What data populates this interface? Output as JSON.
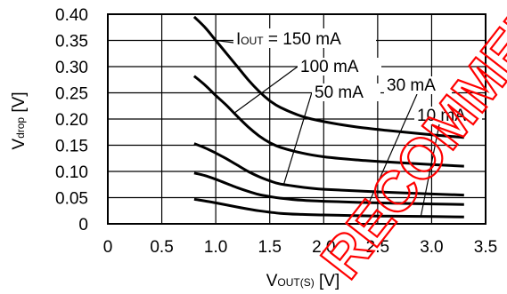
{
  "chart_data": {
    "type": "line",
    "xlabel": {
      "main": "V",
      "sub": "OUT(S)",
      "unit": " [V]"
    },
    "ylabel": {
      "main": "V",
      "sub": "drop",
      "unit": " [V]"
    },
    "xlim": [
      0,
      3.5
    ],
    "ylim": [
      0,
      0.4
    ],
    "x_ticks": [
      "0",
      "0.5",
      "1.0",
      "1.5",
      "2.0",
      "2.5",
      "3.0",
      "3.5"
    ],
    "y_ticks": [
      "0",
      "0.05",
      "0.10",
      "0.15",
      "0.20",
      "0.25",
      "0.30",
      "0.35",
      "0.40"
    ],
    "grid": true,
    "series": [
      {
        "name": "IOUT = 150 mA",
        "x": [
          0.8,
          0.9,
          1.0,
          1.1,
          1.2,
          1.3,
          1.4,
          1.5,
          1.6,
          1.8,
          2.0,
          2.3,
          2.6,
          3.0,
          3.3
        ],
        "y": [
          0.395,
          0.375,
          0.35,
          0.325,
          0.3,
          0.275,
          0.253,
          0.235,
          0.222,
          0.205,
          0.195,
          0.185,
          0.178,
          0.17,
          0.165
        ]
      },
      {
        "name": "100 mA",
        "x": [
          0.8,
          0.9,
          1.0,
          1.1,
          1.2,
          1.3,
          1.4,
          1.5,
          1.6,
          1.8,
          2.0,
          2.3,
          2.6,
          3.0,
          3.3
        ],
        "y": [
          0.282,
          0.265,
          0.245,
          0.226,
          0.205,
          0.185,
          0.168,
          0.155,
          0.146,
          0.135,
          0.128,
          0.122,
          0.118,
          0.113,
          0.11
        ]
      },
      {
        "name": "50 mA",
        "x": [
          0.8,
          0.9,
          1.0,
          1.1,
          1.2,
          1.3,
          1.4,
          1.5,
          1.6,
          1.8,
          2.0,
          2.5,
          3.0,
          3.3
        ],
        "y": [
          0.153,
          0.145,
          0.135,
          0.124,
          0.112,
          0.1,
          0.09,
          0.082,
          0.076,
          0.07,
          0.066,
          0.061,
          0.057,
          0.055
        ]
      },
      {
        "name": "30 mA",
        "x": [
          0.8,
          0.9,
          1.0,
          1.1,
          1.2,
          1.3,
          1.4,
          1.5,
          1.6,
          1.8,
          2.0,
          2.5,
          3.0,
          3.3
        ],
        "y": [
          0.097,
          0.092,
          0.085,
          0.077,
          0.069,
          0.062,
          0.056,
          0.052,
          0.049,
          0.045,
          0.043,
          0.04,
          0.038,
          0.037
        ]
      },
      {
        "name": "10 mA",
        "x": [
          0.8,
          1.0,
          1.2,
          1.4,
          1.6,
          1.8,
          2.0,
          2.5,
          3.0,
          3.3
        ],
        "y": [
          0.047,
          0.04,
          0.032,
          0.025,
          0.02,
          0.018,
          0.017,
          0.015,
          0.014,
          0.013
        ]
      }
    ],
    "annotations": [
      {
        "parts": [
          {
            "t": "I",
            "sub": false
          },
          {
            "t": "OUT",
            "sub": true
          },
          {
            "t": " = 150 mA",
            "sub": false
          }
        ],
        "series": 0,
        "at_x": 1.0
      },
      {
        "parts": [
          {
            "t": "100 mA",
            "sub": false
          }
        ],
        "series": 1,
        "at_x": 1.17
      },
      {
        "parts": [
          {
            "t": "50 mA",
            "sub": false
          }
        ],
        "series": 2,
        "at_x": 1.63
      },
      {
        "parts": [
          {
            "t": "30 mA",
            "sub": false
          }
        ],
        "series": 3,
        "at_x": 2.42
      },
      {
        "parts": [
          {
            "t": "10 mA",
            "sub": false
          }
        ],
        "series": 4,
        "at_x": 2.9
      }
    ],
    "watermark": "RECOMMENDED"
  }
}
